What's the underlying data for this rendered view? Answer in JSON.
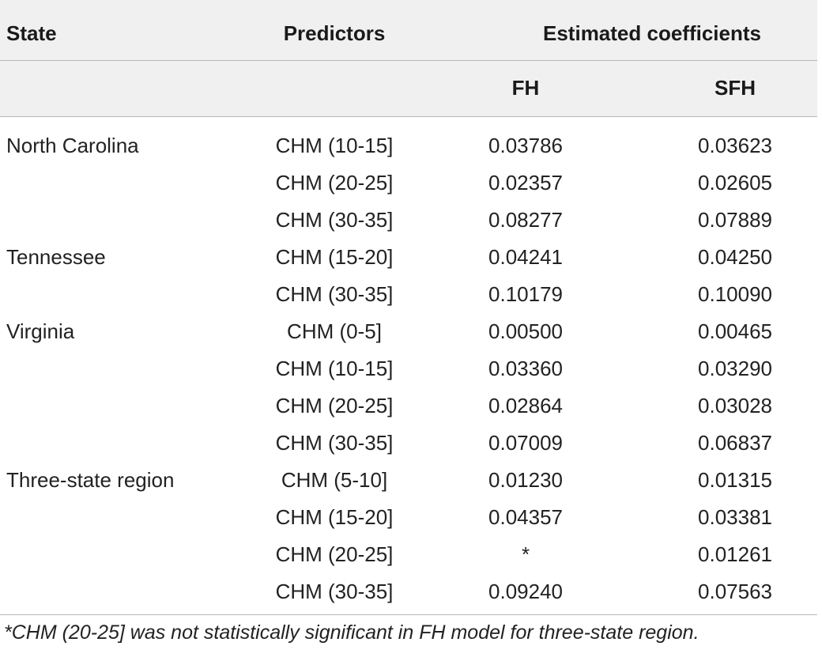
{
  "table": {
    "headers": {
      "state": "State",
      "predictors": "Predictors",
      "estimated": "Estimated coefficients",
      "fh": "FH",
      "sfh": "SFH"
    },
    "rows": [
      {
        "state": "North Carolina",
        "predictor": "CHM (10-15]",
        "fh": "0.03786",
        "sfh": "0.03623"
      },
      {
        "state": "",
        "predictor": "CHM (20-25]",
        "fh": "0.02357",
        "sfh": "0.02605"
      },
      {
        "state": "",
        "predictor": "CHM (30-35]",
        "fh": "0.08277",
        "sfh": "0.07889"
      },
      {
        "state": "Tennessee",
        "predictor": "CHM (15-20]",
        "fh": "0.04241",
        "sfh": "0.04250"
      },
      {
        "state": "",
        "predictor": "CHM (30-35]",
        "fh": "0.10179",
        "sfh": "0.10090"
      },
      {
        "state": "Virginia",
        "predictor": "CHM (0-5]",
        "fh": "0.00500",
        "sfh": "0.00465"
      },
      {
        "state": "",
        "predictor": "CHM (10-15]",
        "fh": "0.03360",
        "sfh": "0.03290"
      },
      {
        "state": "",
        "predictor": "CHM (20-25]",
        "fh": "0.02864",
        "sfh": "0.03028"
      },
      {
        "state": "",
        "predictor": "CHM (30-35]",
        "fh": "0.07009",
        "sfh": "0.06837"
      },
      {
        "state": "Three-state region",
        "predictor": "CHM (5-10]",
        "fh": "0.01230",
        "sfh": "0.01315"
      },
      {
        "state": "",
        "predictor": "CHM (15-20]",
        "fh": "0.04357",
        "sfh": "0.03381"
      },
      {
        "state": "",
        "predictor": "CHM (20-25]",
        "fh": "*",
        "sfh": "0.01261"
      },
      {
        "state": "",
        "predictor": "CHM (30-35]",
        "fh": "0.09240",
        "sfh": "0.07563"
      }
    ],
    "footnote": "*CHM (20-25] was not statistically significant in FH model for three-state region."
  }
}
